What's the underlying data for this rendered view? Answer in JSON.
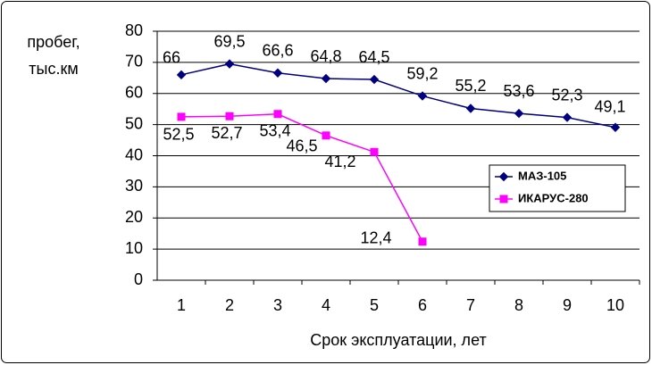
{
  "chart_data": {
    "type": "line",
    "ylabel": [
      "пробег,",
      "тыс.км"
    ],
    "xlabel": "Срок эксплуатации, лет",
    "categories": [
      "1",
      "2",
      "3",
      "4",
      "5",
      "6",
      "7",
      "8",
      "9",
      "10"
    ],
    "series": [
      {
        "name": "МАЗ-105",
        "color": "#000080",
        "marker": "diamond",
        "values": [
          66,
          69.5,
          66.6,
          64.8,
          64.5,
          59.2,
          55.2,
          53.6,
          52.3,
          49.1
        ],
        "value_labels": [
          "66",
          "69,5",
          "66,6",
          "64,8",
          "64,5",
          "59,2",
          "55,2",
          "53,6",
          "52,3",
          "49,1"
        ]
      },
      {
        "name": "ИКАРУС-280",
        "color": "#ff00ff",
        "marker": "square",
        "values": [
          52.5,
          52.7,
          53.4,
          46.5,
          41.2,
          12.4,
          null,
          null,
          null,
          null
        ],
        "value_labels": [
          "52,5",
          "52,7",
          "53,4",
          "46,5",
          "41,2",
          "12,4",
          null,
          null,
          null,
          null
        ]
      }
    ],
    "ylim": [
      0,
      80
    ],
    "yticks": [
      0,
      10,
      20,
      30,
      40,
      50,
      60,
      70,
      80
    ],
    "grid": true,
    "legend": "right"
  }
}
